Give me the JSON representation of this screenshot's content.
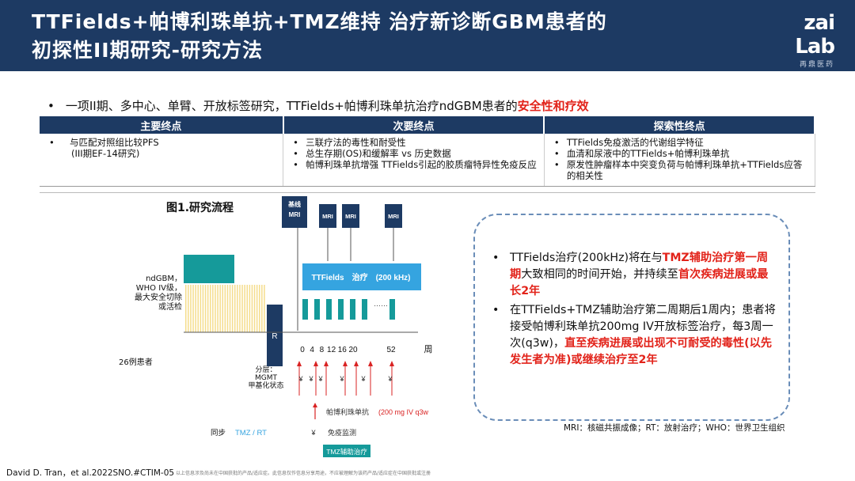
{
  "header": {
    "title_line1": "TTFields+帕博利珠单抗+TMZ维持 治疗新诊断GBM患者的",
    "title_line2": "初探性II期研究-研究方法",
    "logo_text": "zai Lab",
    "logo_sub": "再鼎医药"
  },
  "intro": {
    "bullet": "•",
    "text": "一项II期、多中心、单臂、开放标签研究，TTFields+帕博利珠单抗治疗ndGBM患者的",
    "highlight": "安全性和疗效"
  },
  "endpoints": {
    "headers": [
      "主要终点",
      "次要终点",
      "探索性终点"
    ],
    "primary": [
      "与匹配对照组比较PFS"
    ],
    "primary_note": "(III期EF-14研究)",
    "secondary": [
      "三联疗法的毒性和耐受性",
      "总生存期(OS)和缓解率 vs 历史数据",
      "帕博利珠单抗增强 TTFields引起的胶质瘤特异性免疫反应"
    ],
    "exploratory": [
      "TTFields免疫激活的代谢组学特征",
      "血清和尿液中的TTFields+帕博利珠单抗",
      "原发性肿瘤样本中突变负荷与帕博利珠单抗+TTFields应答的相关性"
    ]
  },
  "figure": {
    "title": "图1.研究流程",
    "patient_desc": [
      "ndGBM，",
      "WHO IV级，",
      "最大安全切除",
      "或活检"
    ],
    "patients": "26例患者",
    "randomize": "R",
    "strat": [
      "分层：",
      "MGMT",
      "甲基化状态"
    ],
    "mri_baseline": [
      "基线",
      "MRI"
    ],
    "mri_label": "MRI",
    "ttfields_bar": "TTFields　治疗　(200 kHz)",
    "ellipsis": "……",
    "weeks": [
      "0",
      "4",
      "8",
      "12",
      "16",
      "20",
      "52"
    ],
    "week_unit": "周",
    "immune_mark": "¥",
    "legend_pembro": "帕博利珠单抗",
    "legend_dose": "(200 mg IV q3w",
    "legend_immune": "免疫监测",
    "legend_tmz": "TMZ辅助治疗",
    "sync_label": "同步",
    "sync_value": "TMZ / RT",
    "colors": {
      "teal": "#159a9a",
      "blue_bar": "#35a4e0",
      "yellow": "#f5dd8c",
      "navy": "#1d3a63",
      "red": "#d92323"
    }
  },
  "callout": {
    "item1_a": "TTFields治疗(200kHz)将在与",
    "item1_b": "TMZ辅助治疗第一周期",
    "item1_c": "大致相同的时间开始，并持续至",
    "item1_d": "首次疾病进展或最长2年",
    "item2_a": "在TTFields+TMZ辅助治疗第二周期后1周内；患者将接受帕博利珠单抗200mg IV开放标签治疗，每3周一次(q3w)，",
    "item2_b": "直至疾病进展或出现不可耐受的毒性(以先发生者为准)或继续治疗至2年"
  },
  "footnote": "MRI：核磁共振成像；RT：放射治疗；WHO：世界卫生组织",
  "citation": "David D. Tran，et al.2022SNO.#CTIM-05",
  "disclaimer": "以上信息涉及尚未在中国获批的产品/适应症。此信息仅作信息分享用途，不应被理解为该药产品/适应症在中国获批或注册"
}
